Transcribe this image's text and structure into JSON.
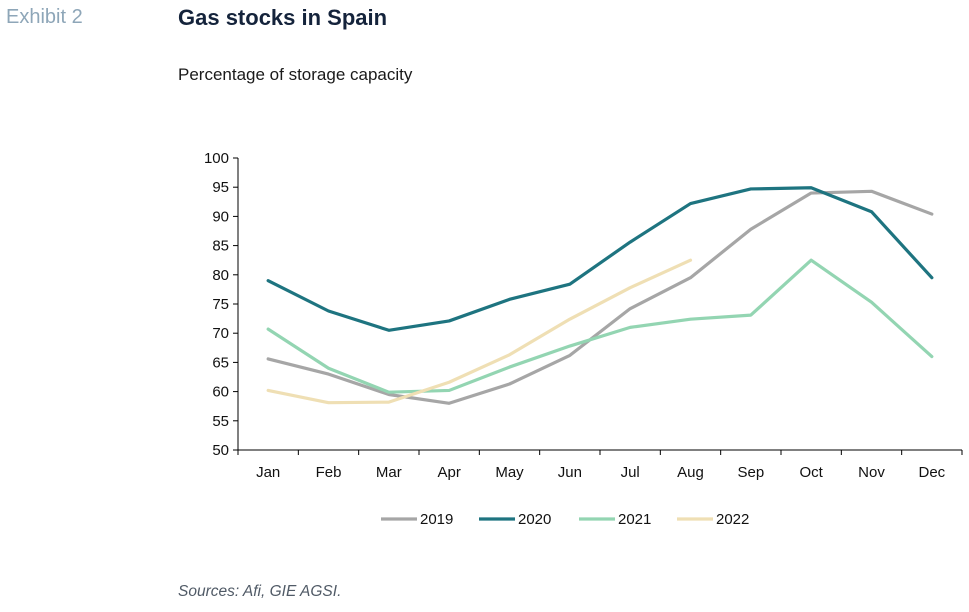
{
  "exhibit_label": "Exhibit 2",
  "title": "Gas stocks in Spain",
  "subtitle": "Percentage of storage capacity",
  "source": "Sources: Afi, GIE AGSI.",
  "chart_data": {
    "type": "line",
    "title": "Gas stocks in Spain",
    "subtitle": "Percentage of storage capacity",
    "xlabel": "",
    "ylabel": "",
    "categories": [
      "Jan",
      "Feb",
      "Mar",
      "Apr",
      "May",
      "Jun",
      "Jul",
      "Aug",
      "Sep",
      "Oct",
      "Nov",
      "Dec"
    ],
    "ylim": [
      50,
      100
    ],
    "yticks": [
      50,
      55,
      60,
      65,
      70,
      75,
      80,
      85,
      90,
      95,
      100
    ],
    "grid": false,
    "legend_position": "bottom",
    "series": [
      {
        "name": "2019",
        "color": "#a6a6a6",
        "values": [
          65.6,
          63.0,
          59.5,
          58.0,
          61.3,
          66.2,
          74.2,
          79.5,
          87.8,
          94.0,
          94.3,
          90.4
        ]
      },
      {
        "name": "2020",
        "color": "#1e7480",
        "values": [
          79.0,
          73.8,
          70.5,
          72.1,
          75.8,
          78.4,
          85.6,
          92.2,
          94.7,
          94.9,
          90.8,
          79.5
        ]
      },
      {
        "name": "2021",
        "color": "#93d5b2",
        "values": [
          70.7,
          64.0,
          59.9,
          60.2,
          64.2,
          67.8,
          71.0,
          72.4,
          73.1,
          82.5,
          75.3,
          66.0
        ]
      },
      {
        "name": "2022",
        "color": "#efdfb4",
        "values": [
          60.2,
          58.1,
          58.2,
          61.6,
          66.3,
          72.4,
          77.8,
          82.5,
          null,
          null,
          null,
          null
        ]
      }
    ]
  }
}
